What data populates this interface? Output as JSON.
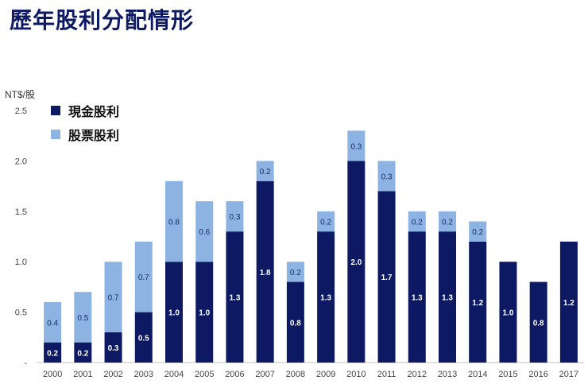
{
  "page": {
    "title": "歷年股利分配情形",
    "unit": "NT$/股"
  },
  "legend": [
    {
      "label": "現金股利",
      "color": "#0d1a63"
    },
    {
      "label": "股票股利",
      "color": "#8db3e2"
    }
  ],
  "chart_data": {
    "type": "stacked-bar",
    "title": "歷年股利分配情形",
    "ylabel": "NT$/股",
    "ylim": [
      0,
      2.5
    ],
    "yticks": [
      "-",
      "0.5",
      "1.0",
      "1.5",
      "2.0",
      "2.5"
    ],
    "categories": [
      "2000",
      "2001",
      "2002",
      "2003",
      "2004",
      "2005",
      "2006",
      "2007",
      "2008",
      "2009",
      "2010",
      "2011",
      "2012",
      "2013",
      "2014",
      "2015",
      "2016",
      "2017"
    ],
    "series": [
      {
        "name": "現金股利",
        "color": "#0d1a63",
        "values": [
          0.2,
          0.2,
          0.3,
          0.5,
          1.0,
          1.0,
          1.3,
          1.8,
          0.8,
          1.3,
          2.0,
          1.7,
          1.3,
          1.3,
          1.2,
          1.0,
          0.8,
          1.2
        ],
        "labels": [
          "0.2",
          "0.2",
          "0.3",
          "0.5",
          "1.0",
          "1.0",
          "1.3",
          "1.8",
          "0.8",
          "1.3",
          "2.0",
          "1.7",
          "1.3",
          "1.3",
          "1.2",
          "1.0",
          "0.8",
          "1.2"
        ]
      },
      {
        "name": "股票股利",
        "color": "#8db3e2",
        "values": [
          0.4,
          0.5,
          0.7,
          0.7,
          0.8,
          0.6,
          0.3,
          0.2,
          0.2,
          0.2,
          0.3,
          0.3,
          0.2,
          0.2,
          0.2,
          0,
          0,
          0
        ],
        "labels": [
          "0.4",
          "0.5",
          "0.7",
          "0.7",
          "0.8",
          "0.6",
          "0.3",
          "0.2",
          "0.2",
          "0.2",
          "0.3",
          "0.3",
          "0.2",
          "0.2",
          "0.2",
          "",
          "",
          ""
        ]
      }
    ]
  }
}
